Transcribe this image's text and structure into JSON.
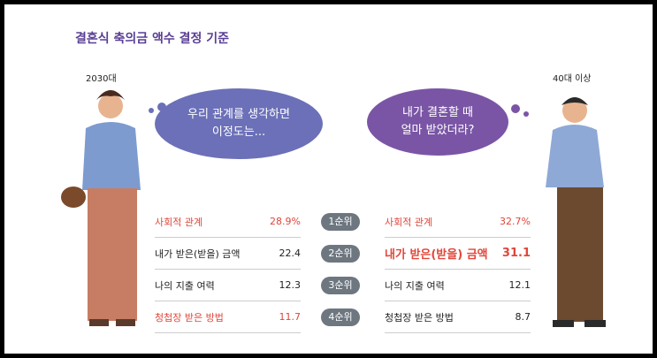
{
  "title": "결혼식 축의금 액수 결정 기준",
  "ranks": [
    "1순위",
    "2순위",
    "3순위",
    "4순위"
  ],
  "groups": [
    {
      "label": "2030대",
      "bubble": [
        "우리 관계를 생각하면",
        "이정도는..."
      ],
      "rows": [
        {
          "label": "사회적 관계",
          "value": "28.9%",
          "highlight": true
        },
        {
          "label": "내가 받은(받을) 금액",
          "value": "22.4",
          "highlight": false
        },
        {
          "label": "나의 지출 여력",
          "value": "12.3",
          "highlight": false
        },
        {
          "label": "청첩장 받은 방법",
          "value": "11.7",
          "highlight": true
        }
      ]
    },
    {
      "label": "40대 이상",
      "bubble": [
        "내가 결혼할 때",
        "얼마 받았더라?"
      ],
      "rows": [
        {
          "label": "사회적 관계",
          "value": "32.7%",
          "highlight": true
        },
        {
          "label": "내가 받은(받을) 금액",
          "value": "31.1",
          "highlight": true,
          "emphasis": true
        },
        {
          "label": "나의 지출 여력",
          "value": "12.1",
          "highlight": false
        },
        {
          "label": "청첩장 받은 방법",
          "value": "8.7",
          "highlight": false
        }
      ]
    }
  ]
}
